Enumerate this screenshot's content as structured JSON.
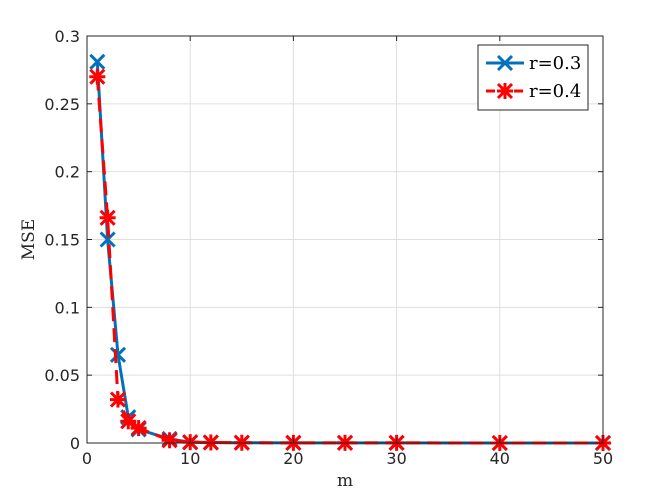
{
  "chart_data": {
    "type": "line",
    "title": "",
    "xlabel": "m",
    "ylabel": "MSE",
    "xlim": [
      0,
      50
    ],
    "ylim": [
      0,
      0.3
    ],
    "x_ticks": [
      0,
      10,
      20,
      30,
      40,
      50
    ],
    "y_ticks": [
      0,
      0.05,
      0.1,
      0.15,
      0.2,
      0.25,
      0.3
    ],
    "x_tick_labels": [
      "0",
      "10",
      "20",
      "30",
      "40",
      "50"
    ],
    "y_tick_labels": [
      "0",
      "0.05",
      "0.1",
      "0.15",
      "0.2",
      "0.25",
      "0.3"
    ],
    "grid": true,
    "legend_position": "top-right",
    "series": [
      {
        "name": "r=0.3",
        "color": "#0072BD",
        "line_style": "solid",
        "marker": "x",
        "x": [
          1,
          2,
          3,
          4,
          5,
          8,
          10,
          12,
          15,
          20,
          25,
          30,
          40,
          50
        ],
        "y": [
          0.281,
          0.15,
          0.065,
          0.019,
          0.01,
          0.003,
          0.0005,
          0.0003,
          0.0002,
          0.0001,
          0.0001,
          0.0001,
          0.0,
          0.0
        ]
      },
      {
        "name": "r=0.4",
        "color": "#FF0000",
        "line_style": "dashed",
        "marker": "asterisk",
        "x": [
          1,
          2,
          3,
          4,
          5,
          8,
          10,
          12,
          15,
          20,
          25,
          30,
          40,
          50
        ],
        "y": [
          0.27,
          0.166,
          0.032,
          0.016,
          0.011,
          0.002,
          0.0006,
          0.0004,
          0.0002,
          0.0001,
          0.0001,
          0.0001,
          0.0,
          0.0
        ]
      }
    ]
  }
}
